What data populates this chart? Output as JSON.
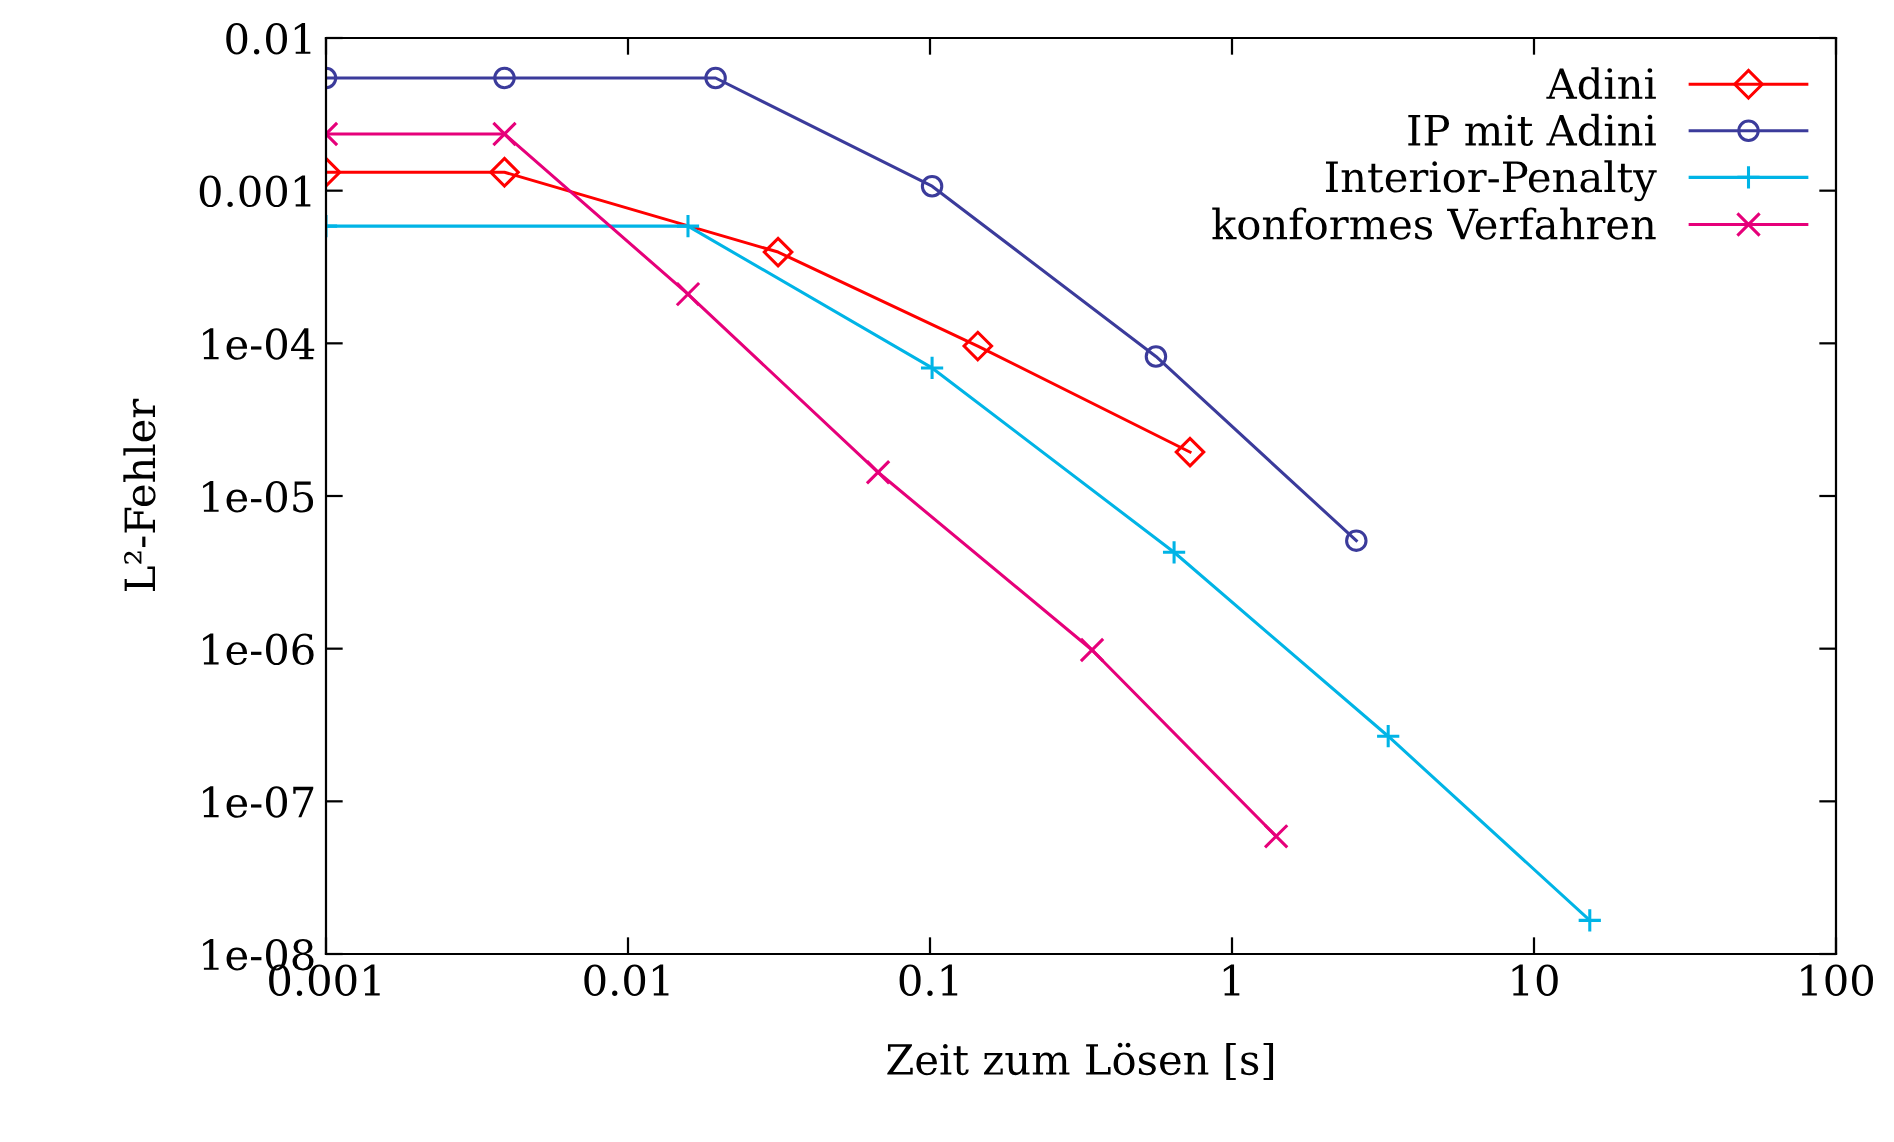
{
  "chart_data": {
    "type": "line",
    "xlabel": "Zeit zum Lösen [s]",
    "ylabel": "L²-Fehler",
    "log": "xy",
    "grid": false,
    "legend": "top right",
    "xlim": [
      0.001,
      100
    ],
    "xticks": [
      0.001,
      0.01,
      0.1,
      1,
      10,
      100
    ],
    "ylim": [
      1e-08,
      0.01
    ],
    "yticks": [
      {
        "value": 0.01,
        "label": "0.01"
      },
      {
        "value": 0.001,
        "label": "0.001"
      },
      {
        "value": 0.0001,
        "label": "1e-04"
      },
      {
        "value": 1e-05,
        "label": "1e-05"
      },
      {
        "value": 1e-06,
        "label": "1e-06"
      },
      {
        "value": 1e-07,
        "label": "1e-07"
      },
      {
        "value": 1e-08,
        "label": "1e-08"
      }
    ],
    "series": [
      {
        "name": "Adini",
        "color": "#ff0000",
        "marker": "diamond",
        "x": [
          0.001,
          0.0039,
          0.0314,
          0.144,
          0.726
        ],
        "values": [
          0.00132,
          0.00132,
          0.000396,
          9.6e-05,
          1.94e-05
        ]
      },
      {
        "name": "IP mit Adini",
        "color": "#3b3b9b",
        "marker": "circle",
        "x": [
          0.001,
          0.0039,
          0.0195,
          0.1016,
          0.56,
          2.58
        ],
        "values": [
          0.00547,
          0.00547,
          0.00547,
          0.00107,
          8.2e-05,
          5.1e-06
        ]
      },
      {
        "name": "Interior-Penalty",
        "color": "#00b4e6",
        "marker": "plus",
        "x": [
          0.001,
          0.0158,
          0.1016,
          0.643,
          3.29,
          15.3
        ],
        "values": [
          0.000586,
          0.000586,
          6.9e-05,
          4.28e-06,
          2.67e-07,
          1.66e-08
        ]
      },
      {
        "name": "konformes Verfahren",
        "color": "#e6007a",
        "marker": "cross",
        "x": [
          0.001,
          0.0039,
          0.0158,
          0.0673,
          0.344,
          1.4
        ],
        "values": [
          0.00235,
          0.00235,
          0.00021,
          1.43e-05,
          9.8e-07,
          5.9e-08
        ]
      }
    ]
  }
}
